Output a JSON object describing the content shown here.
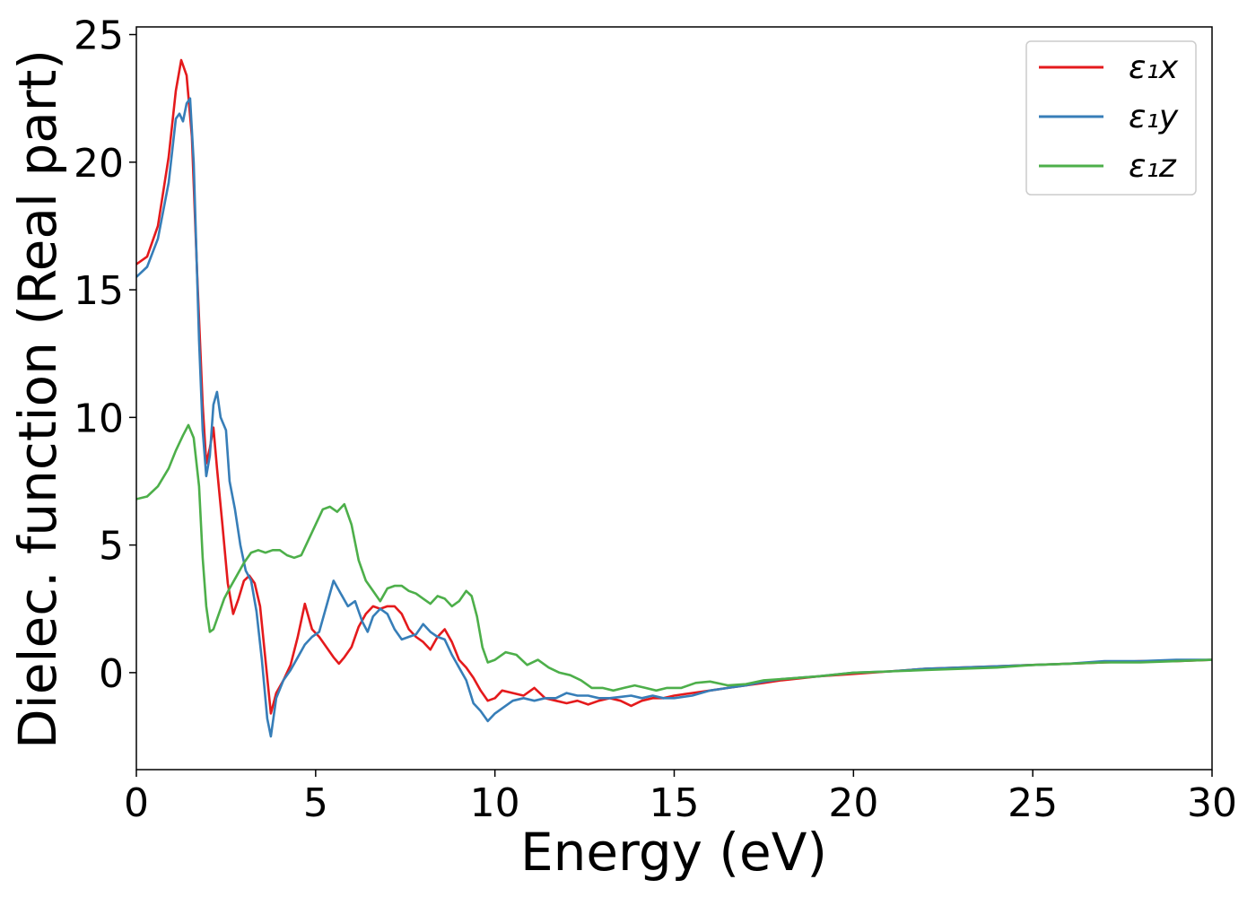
{
  "chart_data": {
    "type": "line",
    "xlabel": "Energy (eV)",
    "ylabel": "Dielec. function (Real part)",
    "xlim": [
      0,
      30
    ],
    "ylim": [
      -3.8,
      25.3
    ],
    "xticks": [
      0,
      5,
      10,
      15,
      20,
      25,
      30
    ],
    "xtick_labels": [
      "0",
      "5",
      "10",
      "15",
      "20",
      "25",
      "30"
    ],
    "yticks": [
      0,
      5,
      10,
      15,
      20,
      25
    ],
    "ytick_labels": [
      "0",
      "5",
      "10",
      "15",
      "20",
      "25"
    ],
    "grid": false,
    "legend": "top-right",
    "series": [
      {
        "name": "ε₁x",
        "color": "#e41a1c",
        "points": [
          [
            0,
            16.0
          ],
          [
            0.3,
            16.3
          ],
          [
            0.6,
            17.5
          ],
          [
            0.9,
            20.2
          ],
          [
            1.1,
            22.8
          ],
          [
            1.25,
            24.0
          ],
          [
            1.4,
            23.4
          ],
          [
            1.55,
            21.0
          ],
          [
            1.7,
            15.5
          ],
          [
            1.85,
            10.5
          ],
          [
            1.95,
            8.2
          ],
          [
            2.05,
            8.8
          ],
          [
            2.15,
            9.6
          ],
          [
            2.25,
            8.0
          ],
          [
            2.4,
            5.8
          ],
          [
            2.55,
            3.5
          ],
          [
            2.7,
            2.3
          ],
          [
            2.85,
            2.9
          ],
          [
            3.0,
            3.6
          ],
          [
            3.15,
            3.8
          ],
          [
            3.3,
            3.5
          ],
          [
            3.45,
            2.6
          ],
          [
            3.6,
            0.5
          ],
          [
            3.75,
            -1.6
          ],
          [
            3.9,
            -0.8
          ],
          [
            4.1,
            -0.3
          ],
          [
            4.3,
            0.3
          ],
          [
            4.5,
            1.4
          ],
          [
            4.7,
            2.7
          ],
          [
            4.9,
            1.7
          ],
          [
            5.1,
            1.4
          ],
          [
            5.3,
            1.0
          ],
          [
            5.5,
            0.6
          ],
          [
            5.65,
            0.35
          ],
          [
            5.8,
            0.6
          ],
          [
            6.0,
            1.0
          ],
          [
            6.2,
            1.8
          ],
          [
            6.4,
            2.3
          ],
          [
            6.6,
            2.6
          ],
          [
            6.8,
            2.5
          ],
          [
            7.0,
            2.6
          ],
          [
            7.2,
            2.6
          ],
          [
            7.4,
            2.3
          ],
          [
            7.6,
            1.7
          ],
          [
            7.8,
            1.4
          ],
          [
            8.0,
            1.2
          ],
          [
            8.2,
            0.9
          ],
          [
            8.4,
            1.4
          ],
          [
            8.6,
            1.7
          ],
          [
            8.8,
            1.2
          ],
          [
            9.0,
            0.5
          ],
          [
            9.2,
            0.2
          ],
          [
            9.4,
            -0.2
          ],
          [
            9.6,
            -0.7
          ],
          [
            9.8,
            -1.1
          ],
          [
            10.0,
            -1.0
          ],
          [
            10.2,
            -0.7
          ],
          [
            10.5,
            -0.8
          ],
          [
            10.8,
            -0.9
          ],
          [
            11.1,
            -0.6
          ],
          [
            11.4,
            -1.0
          ],
          [
            11.7,
            -1.1
          ],
          [
            12.0,
            -1.2
          ],
          [
            12.3,
            -1.1
          ],
          [
            12.6,
            -1.25
          ],
          [
            12.9,
            -1.1
          ],
          [
            13.2,
            -1.0
          ],
          [
            13.5,
            -1.1
          ],
          [
            13.8,
            -1.3
          ],
          [
            14.1,
            -1.1
          ],
          [
            14.4,
            -1.0
          ],
          [
            14.7,
            -1.0
          ],
          [
            15.0,
            -0.9
          ],
          [
            15.5,
            -0.8
          ],
          [
            16.0,
            -0.7
          ],
          [
            16.5,
            -0.6
          ],
          [
            17.0,
            -0.5
          ],
          [
            17.5,
            -0.4
          ],
          [
            18.0,
            -0.3
          ],
          [
            19.0,
            -0.15
          ],
          [
            20.0,
            -0.05
          ],
          [
            21.0,
            0.05
          ],
          [
            22.0,
            0.15
          ],
          [
            23.0,
            0.2
          ],
          [
            24.0,
            0.25
          ],
          [
            25.0,
            0.3
          ],
          [
            26.0,
            0.35
          ],
          [
            27.0,
            0.4
          ],
          [
            28.0,
            0.45
          ],
          [
            29.0,
            0.45
          ],
          [
            30.0,
            0.5
          ]
        ]
      },
      {
        "name": "ε₁y",
        "color": "#377eb8",
        "points": [
          [
            0,
            15.5
          ],
          [
            0.3,
            15.9
          ],
          [
            0.6,
            17.0
          ],
          [
            0.9,
            19.2
          ],
          [
            1.1,
            21.7
          ],
          [
            1.2,
            21.9
          ],
          [
            1.3,
            21.6
          ],
          [
            1.4,
            22.3
          ],
          [
            1.5,
            22.5
          ],
          [
            1.6,
            20.0
          ],
          [
            1.75,
            13.0
          ],
          [
            1.85,
            9.5
          ],
          [
            1.95,
            7.7
          ],
          [
            2.05,
            8.5
          ],
          [
            2.15,
            10.5
          ],
          [
            2.25,
            11.0
          ],
          [
            2.35,
            10.0
          ],
          [
            2.5,
            9.5
          ],
          [
            2.6,
            7.5
          ],
          [
            2.75,
            6.4
          ],
          [
            2.9,
            5.0
          ],
          [
            3.05,
            4.0
          ],
          [
            3.2,
            3.6
          ],
          [
            3.35,
            2.4
          ],
          [
            3.5,
            0.5
          ],
          [
            3.65,
            -1.8
          ],
          [
            3.75,
            -2.5
          ],
          [
            3.9,
            -1.0
          ],
          [
            4.1,
            -0.3
          ],
          [
            4.3,
            0.1
          ],
          [
            4.5,
            0.6
          ],
          [
            4.7,
            1.1
          ],
          [
            4.9,
            1.4
          ],
          [
            5.1,
            1.6
          ],
          [
            5.3,
            2.6
          ],
          [
            5.5,
            3.6
          ],
          [
            5.7,
            3.1
          ],
          [
            5.9,
            2.6
          ],
          [
            6.1,
            2.8
          ],
          [
            6.3,
            2.0
          ],
          [
            6.45,
            1.6
          ],
          [
            6.6,
            2.2
          ],
          [
            6.8,
            2.5
          ],
          [
            7.0,
            2.3
          ],
          [
            7.2,
            1.7
          ],
          [
            7.4,
            1.3
          ],
          [
            7.6,
            1.4
          ],
          [
            7.8,
            1.5
          ],
          [
            8.0,
            1.9
          ],
          [
            8.2,
            1.6
          ],
          [
            8.4,
            1.4
          ],
          [
            8.6,
            1.3
          ],
          [
            8.8,
            0.7
          ],
          [
            9.0,
            0.2
          ],
          [
            9.2,
            -0.3
          ],
          [
            9.4,
            -1.2
          ],
          [
            9.6,
            -1.5
          ],
          [
            9.8,
            -1.9
          ],
          [
            10.0,
            -1.6
          ],
          [
            10.2,
            -1.4
          ],
          [
            10.5,
            -1.1
          ],
          [
            10.8,
            -1.0
          ],
          [
            11.1,
            -1.1
          ],
          [
            11.4,
            -1.0
          ],
          [
            11.7,
            -1.0
          ],
          [
            12.0,
            -0.8
          ],
          [
            12.3,
            -0.9
          ],
          [
            12.6,
            -0.9
          ],
          [
            12.9,
            -1.0
          ],
          [
            13.2,
            -1.0
          ],
          [
            13.5,
            -0.95
          ],
          [
            13.8,
            -0.9
          ],
          [
            14.1,
            -1.0
          ],
          [
            14.4,
            -0.9
          ],
          [
            14.7,
            -1.0
          ],
          [
            15.0,
            -1.0
          ],
          [
            15.5,
            -0.9
          ],
          [
            16.0,
            -0.7
          ],
          [
            16.5,
            -0.6
          ],
          [
            17.0,
            -0.5
          ],
          [
            17.5,
            -0.35
          ],
          [
            18.0,
            -0.25
          ],
          [
            19.0,
            -0.15
          ],
          [
            20.0,
            0.0
          ],
          [
            21.0,
            0.05
          ],
          [
            22.0,
            0.15
          ],
          [
            23.0,
            0.2
          ],
          [
            24.0,
            0.25
          ],
          [
            25.0,
            0.3
          ],
          [
            26.0,
            0.35
          ],
          [
            27.0,
            0.45
          ],
          [
            28.0,
            0.45
          ],
          [
            29.0,
            0.5
          ],
          [
            30.0,
            0.5
          ]
        ]
      },
      {
        "name": "ε₁z",
        "color": "#4daf4a",
        "points": [
          [
            0,
            6.8
          ],
          [
            0.3,
            6.9
          ],
          [
            0.6,
            7.3
          ],
          [
            0.9,
            8.0
          ],
          [
            1.1,
            8.7
          ],
          [
            1.3,
            9.3
          ],
          [
            1.45,
            9.7
          ],
          [
            1.6,
            9.2
          ],
          [
            1.75,
            7.3
          ],
          [
            1.85,
            4.5
          ],
          [
            1.95,
            2.6
          ],
          [
            2.05,
            1.6
          ],
          [
            2.15,
            1.7
          ],
          [
            2.3,
            2.3
          ],
          [
            2.45,
            2.9
          ],
          [
            2.6,
            3.3
          ],
          [
            2.8,
            3.8
          ],
          [
            3.0,
            4.3
          ],
          [
            3.2,
            4.7
          ],
          [
            3.4,
            4.8
          ],
          [
            3.6,
            4.7
          ],
          [
            3.8,
            4.8
          ],
          [
            4.0,
            4.8
          ],
          [
            4.2,
            4.6
          ],
          [
            4.4,
            4.5
          ],
          [
            4.6,
            4.6
          ],
          [
            4.8,
            5.2
          ],
          [
            5.0,
            5.8
          ],
          [
            5.2,
            6.4
          ],
          [
            5.4,
            6.5
          ],
          [
            5.6,
            6.3
          ],
          [
            5.8,
            6.6
          ],
          [
            6.0,
            5.8
          ],
          [
            6.2,
            4.4
          ],
          [
            6.4,
            3.6
          ],
          [
            6.6,
            3.2
          ],
          [
            6.8,
            2.8
          ],
          [
            7.0,
            3.3
          ],
          [
            7.2,
            3.4
          ],
          [
            7.4,
            3.4
          ],
          [
            7.6,
            3.2
          ],
          [
            7.8,
            3.1
          ],
          [
            8.0,
            2.9
          ],
          [
            8.2,
            2.7
          ],
          [
            8.4,
            3.0
          ],
          [
            8.6,
            2.9
          ],
          [
            8.8,
            2.6
          ],
          [
            9.0,
            2.8
          ],
          [
            9.2,
            3.2
          ],
          [
            9.35,
            3.0
          ],
          [
            9.5,
            2.2
          ],
          [
            9.65,
            1.0
          ],
          [
            9.8,
            0.4
          ],
          [
            10.0,
            0.5
          ],
          [
            10.3,
            0.8
          ],
          [
            10.6,
            0.7
          ],
          [
            10.9,
            0.3
          ],
          [
            11.2,
            0.5
          ],
          [
            11.5,
            0.2
          ],
          [
            11.8,
            0.0
          ],
          [
            12.1,
            -0.1
          ],
          [
            12.4,
            -0.3
          ],
          [
            12.7,
            -0.6
          ],
          [
            13.0,
            -0.6
          ],
          [
            13.3,
            -0.7
          ],
          [
            13.6,
            -0.6
          ],
          [
            13.9,
            -0.5
          ],
          [
            14.2,
            -0.6
          ],
          [
            14.5,
            -0.7
          ],
          [
            14.8,
            -0.6
          ],
          [
            15.2,
            -0.6
          ],
          [
            15.6,
            -0.4
          ],
          [
            16.0,
            -0.35
          ],
          [
            16.5,
            -0.5
          ],
          [
            17.0,
            -0.45
          ],
          [
            17.5,
            -0.3
          ],
          [
            18.0,
            -0.25
          ],
          [
            19.0,
            -0.15
          ],
          [
            20.0,
            0.0
          ],
          [
            21.0,
            0.05
          ],
          [
            22.0,
            0.1
          ],
          [
            23.0,
            0.15
          ],
          [
            24.0,
            0.2
          ],
          [
            25.0,
            0.3
          ],
          [
            26.0,
            0.35
          ],
          [
            27.0,
            0.4
          ],
          [
            28.0,
            0.4
          ],
          [
            29.0,
            0.45
          ],
          [
            30.0,
            0.5
          ]
        ]
      }
    ]
  }
}
